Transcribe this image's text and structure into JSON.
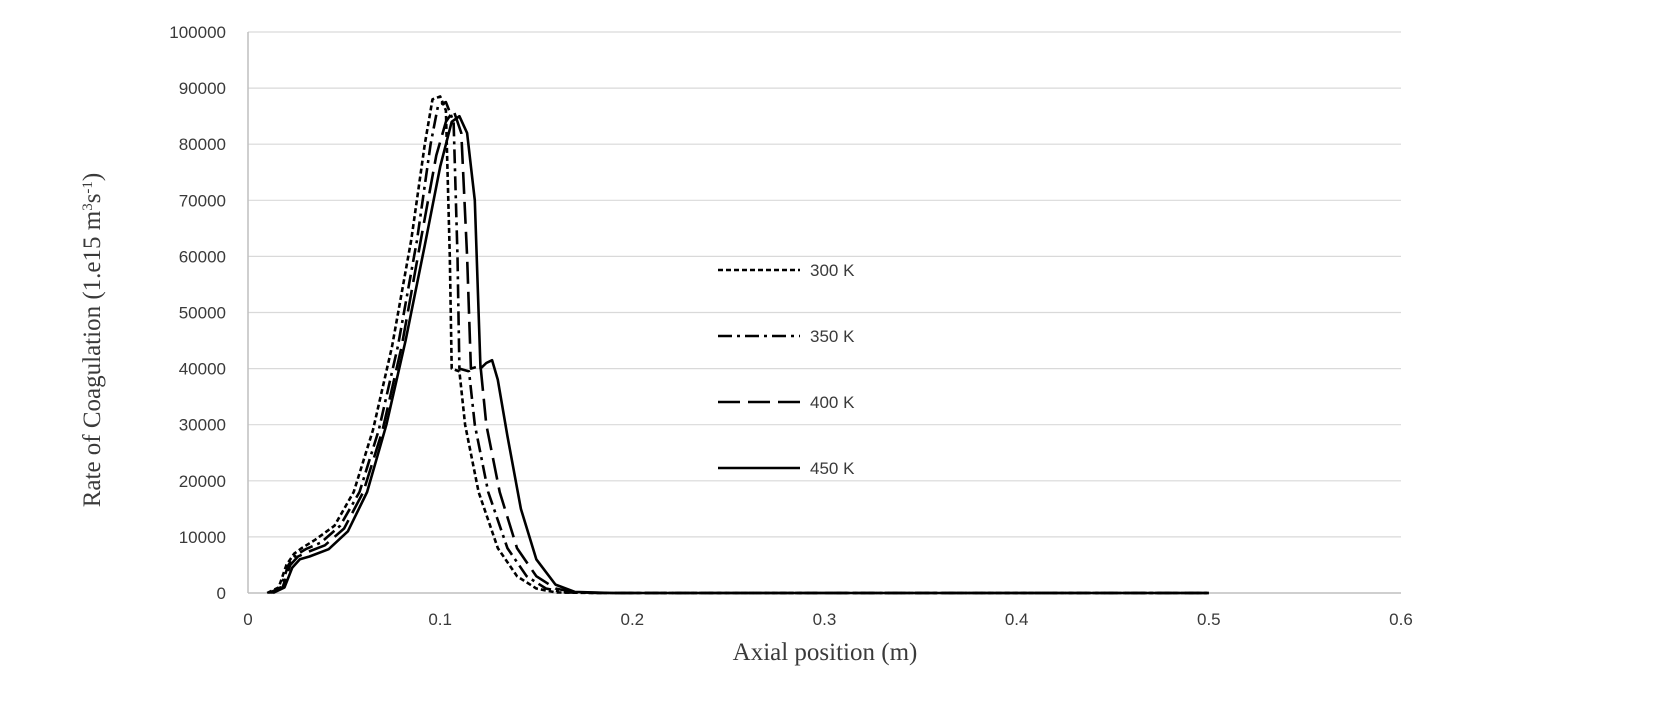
{
  "chart_data": {
    "type": "line",
    "xlabel": "Axial position (m)",
    "ylabel": {
      "main": "Rate of Coagulation (1.e15 m",
      "sup1": "3",
      "mid": "s",
      "sup2": "-1",
      "end": ")"
    },
    "xlim": [
      0,
      0.6
    ],
    "ylim": [
      0,
      100000
    ],
    "x_ticks": [
      "0",
      "0.1",
      "0.2",
      "0.3",
      "0.4",
      "0.5",
      "0.6"
    ],
    "y_ticks": [
      "0",
      "10000",
      "20000",
      "30000",
      "40000",
      "50000",
      "60000",
      "70000",
      "80000",
      "90000",
      "100000"
    ],
    "grid": "horizontal",
    "legend_position": "center",
    "series": [
      {
        "name": "300 K",
        "dash": "5,3",
        "points": [
          [
            0.01,
            0
          ],
          [
            0.016,
            1000
          ],
          [
            0.02,
            5000
          ],
          [
            0.024,
            7000
          ],
          [
            0.028,
            8000
          ],
          [
            0.035,
            9500
          ],
          [
            0.045,
            12000
          ],
          [
            0.055,
            18000
          ],
          [
            0.065,
            29000
          ],
          [
            0.075,
            44000
          ],
          [
            0.085,
            63000
          ],
          [
            0.092,
            80000
          ],
          [
            0.096,
            88000
          ],
          [
            0.1,
            88500
          ],
          [
            0.103,
            86000
          ],
          [
            0.105,
            60000
          ],
          [
            0.106,
            40000
          ],
          [
            0.11,
            39500
          ],
          [
            0.113,
            30000
          ],
          [
            0.12,
            18000
          ],
          [
            0.13,
            8000
          ],
          [
            0.14,
            3000
          ],
          [
            0.15,
            800
          ],
          [
            0.16,
            100
          ],
          [
            0.18,
            0
          ],
          [
            0.5,
            0
          ]
        ]
      },
      {
        "name": "350 K",
        "dash": "14,5,3,5",
        "points": [
          [
            0.011,
            0
          ],
          [
            0.017,
            1000
          ],
          [
            0.021,
            5000
          ],
          [
            0.025,
            6800
          ],
          [
            0.03,
            7800
          ],
          [
            0.038,
            9000
          ],
          [
            0.048,
            12000
          ],
          [
            0.058,
            18000
          ],
          [
            0.068,
            29000
          ],
          [
            0.078,
            44000
          ],
          [
            0.088,
            63000
          ],
          [
            0.095,
            80000
          ],
          [
            0.099,
            87000
          ],
          [
            0.103,
            87500
          ],
          [
            0.107,
            84000
          ],
          [
            0.109,
            60000
          ],
          [
            0.11,
            40000
          ],
          [
            0.115,
            39500
          ],
          [
            0.118,
            30000
          ],
          [
            0.125,
            18000
          ],
          [
            0.135,
            8000
          ],
          [
            0.145,
            3000
          ],
          [
            0.155,
            800
          ],
          [
            0.165,
            100
          ],
          [
            0.185,
            0
          ],
          [
            0.5,
            0
          ]
        ]
      },
      {
        "name": "400 K",
        "dash": "22,8",
        "points": [
          [
            0.012,
            0
          ],
          [
            0.018,
            1000
          ],
          [
            0.022,
            5000
          ],
          [
            0.026,
            6500
          ],
          [
            0.031,
            7300
          ],
          [
            0.04,
            8500
          ],
          [
            0.05,
            11500
          ],
          [
            0.06,
            18000
          ],
          [
            0.07,
            29000
          ],
          [
            0.08,
            44000
          ],
          [
            0.09,
            63000
          ],
          [
            0.098,
            78000
          ],
          [
            0.103,
            84000
          ],
          [
            0.107,
            86000
          ],
          [
            0.111,
            82000
          ],
          [
            0.114,
            60000
          ],
          [
            0.116,
            40000
          ],
          [
            0.121,
            40500
          ],
          [
            0.124,
            30000
          ],
          [
            0.131,
            18000
          ],
          [
            0.14,
            8000
          ],
          [
            0.15,
            3000
          ],
          [
            0.16,
            800
          ],
          [
            0.17,
            100
          ],
          [
            0.19,
            0
          ],
          [
            0.5,
            0
          ]
        ]
      },
      {
        "name": "450 K",
        "dash": "",
        "points": [
          [
            0.013,
            0
          ],
          [
            0.019,
            1000
          ],
          [
            0.023,
            4500
          ],
          [
            0.027,
            6000
          ],
          [
            0.032,
            6500
          ],
          [
            0.042,
            7800
          ],
          [
            0.052,
            11000
          ],
          [
            0.062,
            18000
          ],
          [
            0.072,
            30000
          ],
          [
            0.082,
            45000
          ],
          [
            0.092,
            62000
          ],
          [
            0.1,
            76000
          ],
          [
            0.106,
            84000
          ],
          [
            0.11,
            85000
          ],
          [
            0.114,
            82000
          ],
          [
            0.118,
            70000
          ],
          [
            0.121,
            40000
          ],
          [
            0.124,
            41000
          ],
          [
            0.127,
            41500
          ],
          [
            0.13,
            38000
          ],
          [
            0.135,
            28000
          ],
          [
            0.142,
            15000
          ],
          [
            0.15,
            6000
          ],
          [
            0.16,
            1500
          ],
          [
            0.17,
            200
          ],
          [
            0.19,
            0
          ],
          [
            0.5,
            0
          ]
        ]
      }
    ]
  }
}
